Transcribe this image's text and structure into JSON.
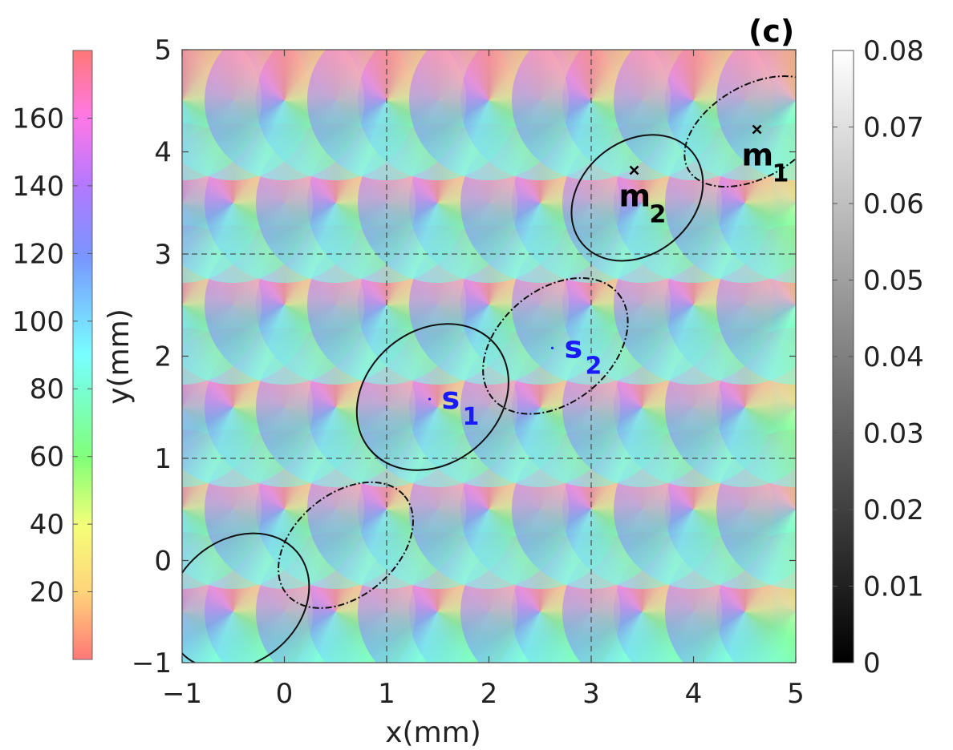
{
  "chart_data": {
    "type": "heatmap",
    "panel_label": "(c)",
    "xlabel": "x(mm)",
    "ylabel": "y(mm)",
    "xlim": [
      -1,
      5
    ],
    "ylim": [
      -1,
      5
    ],
    "xticks": [
      "−1",
      "0",
      "1",
      "2",
      "3",
      "4",
      "5"
    ],
    "yticks": [
      "−1",
      "0",
      "1",
      "2",
      "3",
      "4",
      "5"
    ],
    "x_tick_values": [
      -1,
      0,
      1,
      2,
      3,
      4,
      5
    ],
    "y_tick_values": [
      -1,
      0,
      1,
      2,
      3,
      4,
      5
    ],
    "grid_lines": {
      "x": [
        1,
        3
      ],
      "y": [
        1,
        3
      ],
      "style": "dashed"
    },
    "lattice": {
      "vertices_x_even_rows": [
        -1,
        0,
        1,
        2,
        3,
        4,
        5
      ],
      "vertices_x_odd_rows": [
        -0.5,
        0.5,
        1.5,
        2.5,
        3.5,
        4.5
      ],
      "vertices_y": [
        -0.5,
        0.5,
        1.5,
        2.5,
        3.5,
        4.5
      ],
      "description": "orientation map, hue by angle (degrees)"
    },
    "hue_colorbar": {
      "range": [
        0,
        180
      ],
      "ticks": [
        "20",
        "40",
        "60",
        "80",
        "100",
        "120",
        "140",
        "160"
      ],
      "tick_values": [
        20,
        40,
        60,
        80,
        100,
        120,
        140,
        160
      ]
    },
    "gray_colorbar": {
      "range": [
        0,
        0.08
      ],
      "ticks": [
        "0",
        "0.01",
        "0.02",
        "0.03",
        "0.04",
        "0.05",
        "0.06",
        "0.07",
        "0.08"
      ],
      "tick_values": [
        0,
        0.01,
        0.02,
        0.03,
        0.04,
        0.05,
        0.06,
        0.07,
        0.08
      ]
    },
    "ellipses": [
      {
        "cx": -0.45,
        "cy": -0.4,
        "rx": 0.75,
        "ry": 0.6,
        "rotation": 40,
        "style": "solid"
      },
      {
        "cx": 0.6,
        "cy": 0.15,
        "rx": 0.75,
        "ry": 0.5,
        "rotation": 40,
        "style": "dashed"
      },
      {
        "cx": 1.45,
        "cy": 1.6,
        "rx": 0.8,
        "ry": 0.65,
        "rotation": 40,
        "style": "solid"
      },
      {
        "cx": 2.65,
        "cy": 2.1,
        "rx": 0.8,
        "ry": 0.55,
        "rotation": 40,
        "style": "dashed"
      },
      {
        "cx": 3.45,
        "cy": 3.55,
        "rx": 0.7,
        "ry": 0.55,
        "rotation": 40,
        "style": "solid"
      },
      {
        "cx": 4.6,
        "cy": 4.2,
        "rx": 0.75,
        "ry": 0.45,
        "rotation": 30,
        "style": "dashed"
      }
    ],
    "points": [
      {
        "name": "s",
        "sub": "1",
        "x": 1.42,
        "y": 1.58,
        "marker": "dot",
        "color": "#1a1aff"
      },
      {
        "name": "s",
        "sub": "2",
        "x": 2.62,
        "y": 2.08,
        "marker": "dot",
        "color": "#1a1aff"
      },
      {
        "name": "m",
        "sub": "2",
        "x": 3.42,
        "y": 3.82,
        "marker": "x",
        "color": "#000000"
      },
      {
        "name": "m",
        "sub": "1",
        "x": 4.62,
        "y": 4.22,
        "marker": "x",
        "color": "#000000"
      }
    ]
  }
}
